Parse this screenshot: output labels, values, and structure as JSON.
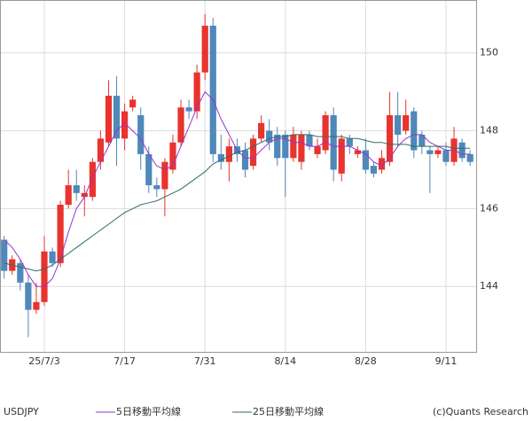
{
  "chart_data": {
    "type": "candlestick",
    "label": "USDJPY",
    "credit": "(c)Quants Research",
    "categories": [
      null,
      null,
      null,
      null,
      null,
      "25/7/3",
      null,
      null,
      null,
      null,
      null,
      null,
      null,
      null,
      null,
      "7/17",
      null,
      null,
      null,
      null,
      null,
      null,
      null,
      null,
      null,
      "7/31",
      null,
      null,
      null,
      null,
      null,
      null,
      null,
      null,
      null,
      "8/14",
      null,
      null,
      null,
      null,
      null,
      null,
      null,
      null,
      null,
      "8/28",
      null,
      null,
      null,
      null,
      null,
      null,
      null,
      null,
      null,
      "9/11",
      null,
      null,
      null
    ],
    "open": [
      145.2,
      144.4,
      144.6,
      144.1,
      143.4,
      143.6,
      144.9,
      144.6,
      146.1,
      146.6,
      146.3,
      146.3,
      147.2,
      147.7,
      148.9,
      147.8,
      148.6,
      148.4,
      147.4,
      146.6,
      146.5,
      147.0,
      147.7,
      148.6,
      148.5,
      149.5,
      150.7,
      147.4,
      147.2,
      147.6,
      147.5,
      147.1,
      147.8,
      148.0,
      147.9,
      147.9,
      147.3,
      147.2,
      147.9,
      147.4,
      147.5,
      148.4,
      146.9,
      147.8,
      147.4,
      147.5,
      147.1,
      147.0,
      147.2,
      148.4,
      148.0,
      148.5,
      147.9,
      147.5,
      147.4,
      147.5,
      147.2,
      147.7,
      147.4
    ],
    "high": [
      145.3,
      144.8,
      144.7,
      144.3,
      144.1,
      145.3,
      145.0,
      146.2,
      147.0,
      147.0,
      146.6,
      147.3,
      148.0,
      149.3,
      149.4,
      148.7,
      148.9,
      148.6,
      147.6,
      146.8,
      147.3,
      147.9,
      148.8,
      148.8,
      149.7,
      151.0,
      150.9,
      147.9,
      147.8,
      147.8,
      147.7,
      147.9,
      148.4,
      148.3,
      148.1,
      148.0,
      148.1,
      148.0,
      148.0,
      147.8,
      148.5,
      148.6,
      147.9,
      147.9,
      147.6,
      147.8,
      147.2,
      147.5,
      149.0,
      149.0,
      148.8,
      148.6,
      148.0,
      147.6,
      147.6,
      147.7,
      148.1,
      147.8,
      147.5
    ],
    "low": [
      144.2,
      144.3,
      143.9,
      142.7,
      143.3,
      143.5,
      144.5,
      144.5,
      146.0,
      146.2,
      145.8,
      146.2,
      147.0,
      147.6,
      147.1,
      147.5,
      148.5,
      147.0,
      146.4,
      146.3,
      145.8,
      146.9,
      147.6,
      148.3,
      148.3,
      149.3,
      147.2,
      147.0,
      146.7,
      147.2,
      146.8,
      147.0,
      147.7,
      147.5,
      147.1,
      146.3,
      147.2,
      147.0,
      147.5,
      147.3,
      147.4,
      146.7,
      146.7,
      147.4,
      147.3,
      146.9,
      146.8,
      146.9,
      147.1,
      147.6,
      147.9,
      147.3,
      147.4,
      146.4,
      147.3,
      147.1,
      147.1,
      147.2,
      147.1
    ],
    "close": [
      144.4,
      144.7,
      144.1,
      143.4,
      143.6,
      144.9,
      144.6,
      146.1,
      146.6,
      146.4,
      146.4,
      147.2,
      147.8,
      148.9,
      147.8,
      148.5,
      148.8,
      147.4,
      146.6,
      146.5,
      147.2,
      147.7,
      148.6,
      148.5,
      149.5,
      150.7,
      147.4,
      147.2,
      147.6,
      147.4,
      147.0,
      147.8,
      148.2,
      147.7,
      147.3,
      147.3,
      147.9,
      147.9,
      147.6,
      147.6,
      148.4,
      147.0,
      147.8,
      147.6,
      147.5,
      147.0,
      146.9,
      147.3,
      148.4,
      147.9,
      148.4,
      147.5,
      147.6,
      147.4,
      147.5,
      147.2,
      147.8,
      147.3,
      147.2
    ],
    "up_color": "#e8332e",
    "down_color": "#4f88b9",
    "series": [
      {
        "name": "5日移動平均線",
        "color": "#9933cc",
        "values": [
          145.2,
          145.0,
          144.7,
          144.3,
          144.0,
          144.0,
          144.2,
          144.7,
          145.4,
          146.0,
          146.3,
          146.8,
          147.2,
          147.6,
          148.0,
          148.2,
          148.0,
          147.8,
          147.4,
          147.1,
          147.0,
          147.1,
          147.6,
          148.1,
          148.6,
          149.0,
          148.8,
          148.3,
          147.9,
          147.5,
          147.3,
          147.3,
          147.5,
          147.7,
          147.8,
          147.8,
          147.7,
          147.7,
          147.6,
          147.6,
          147.7,
          147.6,
          147.6,
          147.6,
          147.5,
          147.4,
          147.2,
          147.1,
          147.3,
          147.6,
          147.8,
          147.9,
          147.9,
          147.7,
          147.6,
          147.5,
          147.5,
          147.4,
          147.4
        ]
      },
      {
        "name": "25日移動平均線",
        "color": "#2f6b6b",
        "values": [
          144.6,
          144.55,
          144.5,
          144.45,
          144.4,
          144.45,
          144.55,
          144.7,
          144.85,
          145.0,
          145.15,
          145.3,
          145.45,
          145.6,
          145.75,
          145.9,
          146.0,
          146.1,
          146.15,
          146.2,
          146.3,
          146.4,
          146.5,
          146.65,
          146.8,
          146.95,
          147.15,
          147.25,
          147.35,
          147.45,
          147.5,
          147.6,
          147.7,
          147.8,
          147.85,
          147.85,
          147.9,
          147.9,
          147.9,
          147.85,
          147.85,
          147.85,
          147.85,
          147.8,
          147.8,
          147.75,
          147.7,
          147.7,
          147.65,
          147.65,
          147.65,
          147.6,
          147.6,
          147.6,
          147.6,
          147.6,
          147.55,
          147.55,
          147.55
        ]
      }
    ],
    "ylim": [
      142.32,
      151.36
    ],
    "yticks": [
      144,
      146,
      148,
      150
    ],
    "grid": true
  }
}
